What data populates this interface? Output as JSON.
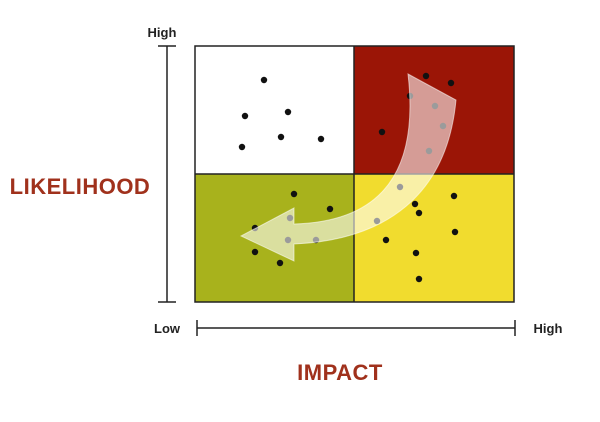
{
  "labels": {
    "y_axis_title": "LIKELIHOOD",
    "x_axis_title": "IMPACT",
    "y_high": "High",
    "x_low": "Low",
    "x_high": "High"
  },
  "quadrants": {
    "top_left": "#ffffff",
    "top_right": "#9b1506",
    "bottom_left": "#a8b21c",
    "bottom_right": "#f1dc2e"
  },
  "colors": {
    "title": "#a0311c",
    "axis": "#222222",
    "dot": "#111111",
    "arrow": "#ffffff"
  },
  "icons": {
    "arrow": "curved-arrow-icon"
  }
}
